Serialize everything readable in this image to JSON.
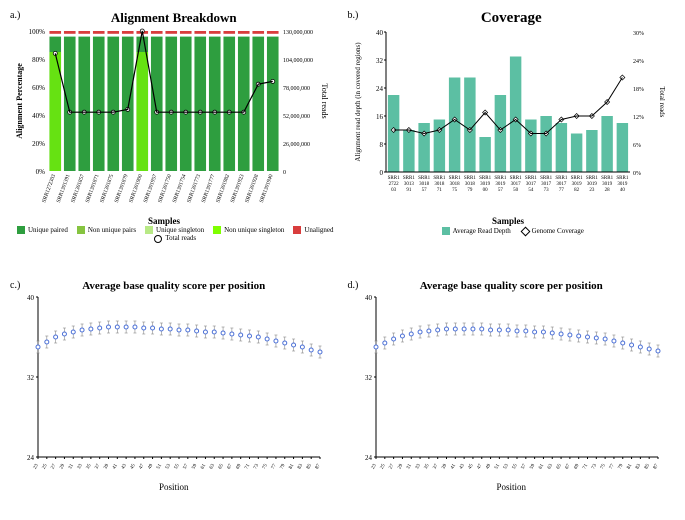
{
  "panel_a": {
    "label": "a.)",
    "title": "Alignment Breakdown",
    "xlabel": "Samples",
    "ylabel_left": "Alignment Percentage",
    "ylabel_right": "Total reads",
    "samples": [
      "SRR1272303",
      "SRR1301391",
      "SRR1301857",
      "SRR1301871",
      "SRR1301875",
      "SRR1301879",
      "SRR1301900",
      "SRR1301957",
      "SRR1301750",
      "SRR1301754",
      "SRR1301773",
      "SRR1301777",
      "SRR1301982",
      "SRR1301923",
      "SRR1301928",
      "SRR1301940"
    ],
    "yticks_left": [
      0,
      20,
      40,
      60,
      80,
      100
    ],
    "yticks_right": [
      0,
      26000000,
      52000000,
      78000000,
      104000000,
      130000000
    ],
    "yticks_right_labels": [
      "0",
      "26,000,000",
      "52,000,000",
      "78,000,000",
      "104,000,000",
      "130,000,000"
    ],
    "unique_paired": [
      96,
      96,
      96,
      96,
      96,
      96,
      96,
      96,
      96,
      96,
      96,
      96,
      96,
      96,
      96,
      96
    ],
    "unaligned": [
      2,
      2,
      2,
      2,
      2,
      2,
      2,
      2,
      2,
      2,
      2,
      2,
      2,
      2,
      2,
      2
    ],
    "non_unique_singleton": [
      85,
      0,
      0,
      0,
      0,
      0,
      85,
      0,
      0,
      0,
      0,
      0,
      0,
      0,
      0,
      0
    ],
    "total_reads": [
      84,
      42,
      42,
      42,
      42,
      44,
      100,
      42,
      42,
      42,
      42,
      42,
      42,
      42,
      62,
      64
    ],
    "colors": {
      "unique_paired": "#2e9e3f",
      "non_unique_pairs": "#86c440",
      "unique_singleton": "#b8e986",
      "non_unique_singleton": "#7fff00",
      "unaligned": "#d93d3d",
      "total_reads": "#000000"
    },
    "legend_items": [
      {
        "swatch": "unique_paired",
        "label": "Unique paired"
      },
      {
        "swatch": "non_unique_pairs",
        "label": "Non unique pairs"
      },
      {
        "swatch": "unique_singleton",
        "label": "Unique singleton"
      },
      {
        "swatch": "non_unique_singleton",
        "label": "Non unique singleton"
      },
      {
        "swatch": "unaligned",
        "label": "Unaligned"
      },
      {
        "swatch": "total_reads",
        "label": "Total reads",
        "marker": true
      }
    ]
  },
  "panel_b": {
    "label": "b.)",
    "title": "Coverage",
    "xlabel": "Samples",
    "ylabel_left": "Alignment read depth (in covered regions)",
    "ylabel_right": "Total reads",
    "samples": [
      "SRR1 2722 03",
      "SRR1 3013 91",
      "SRR1 3018 57",
      "SRR1 3018 71",
      "SRR1 3018 75",
      "SRR1 3018 79",
      "SRR1 3019 00",
      "SRR1 3019 57",
      "SRR1 3017 50",
      "SRR1 3017 54",
      "SRR1 3017 73",
      "SRR1 3017 77",
      "SRR1 3019 82",
      "SRR1 3019 23",
      "SRR1 3019 28",
      "SRR1 3019 40"
    ],
    "yticks_left": [
      0,
      8,
      16,
      24,
      32,
      40
    ],
    "yticks_right_labels": [
      "0%",
      "6%",
      "12%",
      "18%",
      "24%",
      "30%"
    ],
    "avg_depth": [
      22,
      12,
      14,
      15,
      27,
      27,
      10,
      22,
      33,
      15,
      16,
      14,
      11,
      12,
      16,
      14
    ],
    "genome_cov": [
      12,
      12,
      11,
      12,
      15,
      12,
      17,
      12,
      15,
      11,
      11,
      15,
      16,
      16,
      20,
      27
    ],
    "colors": {
      "bar": "#5cbfa3",
      "line": "#000000"
    },
    "legend": {
      "bar": "Average Read Depth",
      "marker": "Genome Coverage"
    }
  },
  "panel_c": {
    "label": "c.)",
    "title": "Average base quality score per position",
    "xlabel": "Position",
    "yticks": [
      24,
      32,
      40
    ],
    "xticks": [
      23,
      25,
      27,
      29,
      31,
      33,
      35,
      37,
      39,
      41,
      43,
      45,
      47,
      49,
      51,
      53,
      55,
      57,
      59,
      61,
      63,
      65,
      67,
      69,
      71,
      73,
      75,
      77,
      79,
      81,
      83,
      85,
      87
    ],
    "values": [
      35,
      35.5,
      36,
      36.3,
      36.5,
      36.7,
      36.8,
      36.9,
      37,
      37,
      37,
      37,
      36.9,
      36.9,
      36.8,
      36.8,
      36.7,
      36.7,
      36.6,
      36.5,
      36.5,
      36.4,
      36.3,
      36.2,
      36.1,
      36,
      35.8,
      35.6,
      35.4,
      35.2,
      35,
      34.7,
      34.5
    ],
    "err": 0.6,
    "color_marker": "#4a6fd6",
    "color_err": "#888888"
  },
  "panel_d": {
    "label": "d.)",
    "title": "Average base quality score per position",
    "xlabel": "Position",
    "yticks": [
      24,
      32,
      40
    ],
    "xticks": [
      23,
      25,
      27,
      29,
      31,
      33,
      35,
      37,
      39,
      41,
      43,
      45,
      47,
      49,
      51,
      53,
      55,
      57,
      59,
      61,
      63,
      65,
      67,
      69,
      71,
      73,
      75,
      77,
      79,
      81,
      83,
      85,
      87
    ],
    "values": [
      35,
      35.4,
      35.8,
      36.1,
      36.3,
      36.5,
      36.6,
      36.7,
      36.8,
      36.8,
      36.8,
      36.8,
      36.8,
      36.7,
      36.7,
      36.7,
      36.6,
      36.6,
      36.5,
      36.5,
      36.4,
      36.3,
      36.2,
      36.1,
      36,
      35.9,
      35.8,
      35.6,
      35.4,
      35.2,
      35,
      34.8,
      34.6
    ],
    "err": 0.6,
    "color_marker": "#4a6fd6",
    "color_err": "#888888"
  }
}
